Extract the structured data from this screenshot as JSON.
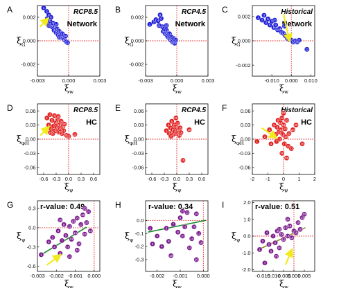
{
  "colors": {
    "blue": "#1f1fd6",
    "red": "#e02020",
    "purple": "#7b1c8e",
    "fit": "#1c8a2a",
    "fit_i": "#8a8a1c",
    "arrow": "#f2ea1d",
    "zero": "#e02020"
  },
  "chart_data": [
    {
      "id": "A",
      "type": "scatter",
      "panel_label": "A",
      "title": "RCP8.5",
      "subtitle": "Network",
      "xlim": [
        -0.003,
        0.003
      ],
      "ylim": [
        -0.003,
        0.003
      ],
      "xticks": [
        -0.003,
        0.0,
        0.003
      ],
      "xticklabels": [
        "-0.003",
        "0.000",
        "0.003"
      ],
      "yticks": [
        -0.002,
        0.0,
        0.002
      ],
      "yticklabels": [
        "-0.002",
        "0.000",
        "0.002"
      ],
      "color": "blue",
      "arrow": {
        "from": [
          -0.00275,
          0.0012
        ],
        "to": [
          -0.00215,
          0.00175
        ]
      },
      "points": [
        [
          -0.0024,
          0.0028
        ],
        [
          -0.0021,
          0.0025
        ],
        [
          -0.00205,
          0.0019
        ],
        [
          -0.0019,
          0.0022
        ],
        [
          -0.0018,
          0.0017
        ],
        [
          -0.0017,
          0.002
        ],
        [
          -0.0016,
          0.0012
        ],
        [
          -0.0015,
          0.0015
        ],
        [
          -0.0014,
          0.0009
        ],
        [
          -0.0013,
          0.0012
        ],
        [
          -0.0012,
          0.0007
        ],
        [
          -0.0011,
          0.001
        ],
        [
          -0.001,
          0.0005
        ],
        [
          -0.0009,
          0.0008
        ],
        [
          -0.0008,
          0.0004
        ],
        [
          -0.0007,
          0.0003
        ],
        [
          -0.0006,
          0.0006
        ],
        [
          -0.0005,
          0.0002
        ],
        [
          -0.0004,
          0.0001
        ],
        [
          -0.0003,
          0.0004
        ],
        [
          -0.0002,
          -0.0001
        ],
        [
          -0.0001,
          -0.00015
        ],
        [
          -0.0019,
          0.0013
        ],
        [
          -0.0012,
          0.0014
        ],
        [
          -0.0009,
          0.0003
        ],
        [
          -0.0022,
          0.0016
        ]
      ]
    },
    {
      "id": "B",
      "type": "scatter",
      "panel_label": "B",
      "title": "RCP4.5",
      "subtitle": "Network",
      "xlim": [
        -0.003,
        0.003
      ],
      "ylim": [
        -0.003,
        0.003
      ],
      "xticks": [
        -0.003,
        0.0,
        0.003
      ],
      "xticklabels": [
        "-0.003",
        "0.000",
        "0.003"
      ],
      "yticks": [
        -0.002,
        0.0,
        0.002
      ],
      "yticklabels": [
        "-0.002",
        "0.000",
        "0.002"
      ],
      "color": "blue",
      "arrow": null,
      "points": [
        [
          -0.0026,
          0.0014
        ],
        [
          -0.0022,
          0.0016
        ],
        [
          -0.002,
          0.0018
        ],
        [
          -0.0018,
          0.0017
        ],
        [
          -0.0016,
          0.0022
        ],
        [
          -0.0015,
          0.0019
        ],
        [
          -0.0014,
          0.0012
        ],
        [
          -0.0013,
          0.0008
        ],
        [
          -0.0012,
          0.001
        ],
        [
          -0.0011,
          0.0006
        ],
        [
          -0.001,
          0.0009
        ],
        [
          -0.0009,
          0.0004
        ],
        [
          -0.0008,
          0.0003
        ],
        [
          -0.0007,
          0.0006
        ],
        [
          -0.0006,
          0.0001
        ],
        [
          -0.0005,
          0.0003
        ],
        [
          -0.0004,
          -0.0001
        ],
        [
          -0.0003,
          0.0002
        ],
        [
          -0.0002,
          -0.0002
        ],
        [
          -0.0001,
          5e-05
        ],
        [
          -0.0017,
          0.0013
        ],
        [
          -0.001,
          0.0013
        ]
      ]
    },
    {
      "id": "C",
      "type": "scatter",
      "panel_label": "C",
      "title": "Historical",
      "subtitle": "Network",
      "xlim": [
        -0.02,
        0.012
      ],
      "ylim": [
        -0.0029,
        0.0029
      ],
      "xticks": [
        -0.01,
        0.0,
        0.01
      ],
      "xticklabels": [
        "-0.010",
        "0.000",
        "0.010"
      ],
      "yticks": [
        -0.002,
        0.0,
        0.002
      ],
      "yticklabels": [
        "-0.002",
        "0.000",
        "0.002"
      ],
      "color": "blue",
      "arrow": {
        "from": [
          -0.004,
          0.0022
        ],
        "to": [
          -0.0012,
          0.0002
        ]
      },
      "points": [
        [
          -0.017,
          0.0019
        ],
        [
          -0.015,
          0.0017
        ],
        [
          -0.014,
          0.0021
        ],
        [
          -0.013,
          0.0015
        ],
        [
          -0.012,
          0.0018
        ],
        [
          -0.011,
          0.0013
        ],
        [
          -0.01,
          0.0016
        ],
        [
          -0.009,
          0.0011
        ],
        [
          -0.008,
          0.0013
        ],
        [
          -0.007,
          0.0009
        ],
        [
          -0.006,
          0.001
        ],
        [
          -0.005,
          0.0007
        ],
        [
          -0.004,
          0.0006
        ],
        [
          -0.003,
          0.0004
        ],
        [
          -0.002,
          0.0002
        ],
        [
          -0.001,
          0.0001
        ],
        [
          0.0,
          5e-05
        ],
        [
          0.001,
          -0.0001
        ],
        [
          0.002,
          0.0
        ],
        [
          0.003,
          -0.0001
        ],
        [
          0.004,
          5e-05
        ],
        [
          0.008,
          -0.0007
        ],
        [
          -0.0085,
          0.0017
        ],
        [
          -0.0035,
          0.0012
        ]
      ]
    },
    {
      "id": "D",
      "type": "scatter",
      "panel_label": "D",
      "title": "RCP8.5",
      "subtitle": "HC",
      "xlim": [
        -0.75,
        0.75
      ],
      "ylim": [
        -0.075,
        0.075
      ],
      "xticks": [
        -0.6,
        -0.3,
        0.0,
        0.3,
        0.6
      ],
      "xticklabels": [
        "-0.6",
        "-0.3",
        "0.0",
        "0.3",
        "0.6"
      ],
      "yticks": [
        -0.06,
        -0.03,
        0.0,
        0.03,
        0.06
      ],
      "yticklabels": [
        "-0.06",
        "-0.03",
        "0.00",
        "0.03",
        "0.06"
      ],
      "color": "red",
      "arrow": {
        "from": [
          -0.68,
          0.008
        ],
        "to": [
          -0.52,
          0.022
        ]
      },
      "points": [
        [
          -0.52,
          0.045
        ],
        [
          -0.48,
          0.03
        ],
        [
          -0.45,
          0.052
        ],
        [
          -0.42,
          0.022
        ],
        [
          -0.4,
          0.04
        ],
        [
          -0.38,
          0.012
        ],
        [
          -0.36,
          0.028
        ],
        [
          -0.34,
          0.05
        ],
        [
          -0.32,
          0.018
        ],
        [
          -0.3,
          0.035
        ],
        [
          -0.28,
          0.025
        ],
        [
          -0.26,
          0.042
        ],
        [
          -0.24,
          0.015
        ],
        [
          -0.22,
          0.03
        ],
        [
          -0.2,
          0.022
        ],
        [
          -0.18,
          0.038
        ],
        [
          -0.16,
          0.012
        ],
        [
          -0.14,
          0.026
        ],
        [
          -0.12,
          0.018
        ],
        [
          -0.1,
          0.032
        ],
        [
          -0.05,
          0.008
        ],
        [
          0.0,
          0.006
        ],
        [
          0.15,
          0.01
        ],
        [
          -0.44,
          0.014
        ],
        [
          -0.25,
          0.048
        ]
      ]
    },
    {
      "id": "E",
      "type": "scatter",
      "panel_label": "E",
      "title": "RCP4.5",
      "subtitle": "HC",
      "xlim": [
        -0.75,
        0.75
      ],
      "ylim": [
        -0.075,
        0.075
      ],
      "xticks": [
        -0.6,
        -0.3,
        0.0,
        0.3,
        0.6
      ],
      "xticklabels": [
        "-0.6",
        "-0.3",
        "0.0",
        "0.3",
        "0.6"
      ],
      "yticks": [
        -0.06,
        -0.03,
        0.0,
        0.03,
        0.06
      ],
      "yticklabels": [
        "-0.06",
        "-0.03",
        "0.00",
        "0.03",
        "0.06"
      ],
      "color": "red",
      "arrow": null,
      "points": [
        [
          -0.25,
          0.018
        ],
        [
          -0.2,
          0.03
        ],
        [
          -0.18,
          0.012
        ],
        [
          -0.15,
          0.024
        ],
        [
          -0.12,
          0.038
        ],
        [
          -0.1,
          0.02
        ],
        [
          -0.08,
          0.01
        ],
        [
          -0.06,
          0.03
        ],
        [
          -0.04,
          0.016
        ],
        [
          -0.02,
          0.026
        ],
        [
          0.0,
          0.012
        ],
        [
          0.02,
          0.034
        ],
        [
          0.04,
          0.02
        ],
        [
          0.06,
          0.008
        ],
        [
          0.08,
          0.024
        ],
        [
          0.1,
          0.014
        ],
        [
          -0.14,
          0.006
        ],
        [
          0.3,
          0.02
        ],
        [
          0.15,
          -0.045
        ],
        [
          -0.02,
          0.045
        ]
      ]
    },
    {
      "id": "F",
      "type": "scatter",
      "panel_label": "F",
      "title": "Historical",
      "subtitle": "HC",
      "xlim": [
        -2.0,
        2.0
      ],
      "ylim": [
        -0.075,
        0.075
      ],
      "xticks": [
        -2,
        -1,
        0,
        1,
        2
      ],
      "xticklabels": [
        "-2",
        "-1",
        "0",
        "1",
        "2"
      ],
      "yticks": [
        -0.06,
        -0.03,
        0.0,
        0.03,
        0.06
      ],
      "yticklabels": [
        "-0.06",
        "-0.03",
        "0.00",
        "0.03",
        "0.06"
      ],
      "color": "red",
      "arrow": {
        "from": [
          -1.4,
          0.024
        ],
        "to": [
          -0.6,
          0.006
        ]
      },
      "points": [
        [
          -1.7,
          -0.005
        ],
        [
          -1.2,
          0.005
        ],
        [
          -0.9,
          0.02
        ],
        [
          -0.8,
          -0.01
        ],
        [
          -0.6,
          0.03
        ],
        [
          -0.5,
          0.01
        ],
        [
          -0.45,
          -0.005
        ],
        [
          -0.4,
          0.025
        ],
        [
          -0.35,
          0.04
        ],
        [
          -0.3,
          0.015
        ],
        [
          -0.25,
          0.0
        ],
        [
          -0.2,
          0.035
        ],
        [
          -0.15,
          0.02
        ],
        [
          -0.1,
          0.045
        ],
        [
          -0.05,
          0.01
        ],
        [
          0.0,
          0.03
        ],
        [
          0.05,
          -0.01
        ],
        [
          0.1,
          0.022
        ],
        [
          0.15,
          0.005
        ],
        [
          0.2,
          0.04
        ],
        [
          0.3,
          -0.015
        ],
        [
          0.35,
          0.012
        ],
        [
          0.5,
          -0.02
        ],
        [
          0.6,
          0.02
        ],
        [
          1.2,
          -0.01
        ],
        [
          -0.1,
          -0.03
        ],
        [
          0.0,
          0.055
        ],
        [
          0.2,
          -0.04
        ],
        [
          0.8,
          0.03
        ]
      ]
    },
    {
      "id": "G",
      "type": "scatter",
      "panel_label": "G",
      "annotation": "r-value: 0.49",
      "xlim": [
        -0.003,
        0.0003
      ],
      "ylim": [
        -0.68,
        0.42
      ],
      "xticks": [
        -0.003,
        -0.002,
        -0.001,
        0.0
      ],
      "xticklabels": [
        "-0.003",
        "-0.002",
        "-0.001",
        "0.000"
      ],
      "yticks": [
        -0.6,
        -0.3,
        0.0,
        0.3
      ],
      "yticklabels": [
        "-0.6",
        "-0.3",
        "0.0",
        "0.3"
      ],
      "color": "purple",
      "fit": {
        "x": [
          -0.0028,
          -0.0004
        ],
        "y": [
          -0.42,
          0.01
        ]
      },
      "arrow": {
        "from": [
          -0.0025,
          -0.58
        ],
        "to": [
          -0.0019,
          -0.45
        ]
      },
      "points": [
        [
          -0.0028,
          -0.42
        ],
        [
          -0.0024,
          -0.22
        ],
        [
          -0.0022,
          -0.15
        ],
        [
          -0.0021,
          -0.3
        ],
        [
          -0.0019,
          -0.05
        ],
        [
          -0.0018,
          -0.4
        ],
        [
          -0.0017,
          -0.2
        ],
        [
          -0.0016,
          0.05
        ],
        [
          -0.0015,
          -0.12
        ],
        [
          -0.0014,
          -0.3
        ],
        [
          -0.0013,
          0.02
        ],
        [
          -0.0012,
          -0.18
        ],
        [
          -0.0011,
          0.1
        ],
        [
          -0.001,
          -0.08
        ],
        [
          -0.0009,
          0.15
        ],
        [
          -0.0008,
          -0.25
        ],
        [
          -0.0007,
          0.05
        ],
        [
          -0.0006,
          0.2
        ],
        [
          -0.0005,
          -0.1
        ],
        [
          -0.0004,
          0.08
        ],
        [
          -0.0003,
          0.25
        ],
        [
          -0.0002,
          -0.05
        ],
        [
          -0.0013,
          -0.45
        ],
        [
          -0.0009,
          -0.35
        ],
        [
          -0.0005,
          0.3
        ],
        [
          -0.0018,
          0.12
        ]
      ]
    },
    {
      "id": "H",
      "type": "scatter",
      "panel_label": "H",
      "annotation": "r-value: 0.34",
      "xlim": [
        -0.0025,
        0.0002
      ],
      "ylim": [
        -0.39,
        0.15
      ],
      "xticks": [
        -0.002,
        -0.001,
        0.0
      ],
      "xticklabels": [
        "-0.002",
        "-0.001",
        "0.000"
      ],
      "yticks": [
        -0.3,
        -0.2,
        -0.1,
        0.0
      ],
      "yticklabels": [
        "-0.3",
        "-0.2",
        "-0.1",
        "0.0"
      ],
      "color": "purple",
      "fit": {
        "x": [
          -0.0024,
          0.0001
        ],
        "y": [
          -0.09,
          0.0
        ]
      },
      "arrow": null,
      "points": [
        [
          -0.0023,
          -0.06
        ],
        [
          -0.0022,
          -0.18
        ],
        [
          -0.002,
          -0.12
        ],
        [
          -0.0018,
          -0.2
        ],
        [
          -0.0016,
          -0.06
        ],
        [
          -0.0015,
          -0.16
        ],
        [
          -0.0013,
          -0.03
        ],
        [
          -0.0011,
          -0.09
        ],
        [
          -0.001,
          0.02
        ],
        [
          -0.0009,
          -0.12
        ],
        [
          -0.0008,
          -0.05
        ],
        [
          -0.0007,
          0.06
        ],
        [
          -0.0006,
          -0.21
        ],
        [
          -0.0005,
          -0.14
        ],
        [
          -0.0004,
          -0.05
        ],
        [
          -0.0003,
          0.05
        ],
        [
          -0.0002,
          -0.1
        ],
        [
          -0.0001,
          -0.17
        ],
        [
          -0.0014,
          -0.27
        ],
        [
          -0.0003,
          -0.3
        ],
        [
          -0.0009,
          0.07
        ]
      ]
    },
    {
      "id": "I",
      "type": "scatter",
      "panel_label": "I",
      "annotation": "r-value: 0.51",
      "xlim": [
        -0.02,
        0.01
      ],
      "ylim": [
        -2.1,
        2.1
      ],
      "xticks": [
        -0.015,
        -0.01,
        -0.005,
        0.0,
        0.005
      ],
      "xticklabels": [
        "-0.015",
        "-0.010",
        "-0.005",
        "0.000",
        "0.005"
      ],
      "yticks": [
        -2,
        -1,
        0,
        1,
        2
      ],
      "yticklabels": [
        "-2.0",
        "-1.0",
        "0.0",
        "1.0",
        "2.0"
      ],
      "color": "purple",
      "fit": {
        "x": [
          -0.017,
          0.0055
        ],
        "y": [
          -0.8,
          0.5
        ]
      },
      "arrow": {
        "from": [
          -0.004,
          -1.7
        ],
        "to": [
          -0.0015,
          -0.95
        ]
      },
      "points": [
        [
          -0.0165,
          -0.8
        ],
        [
          -0.015,
          -0.3
        ],
        [
          -0.014,
          -1.6
        ],
        [
          -0.013,
          0.2
        ],
        [
          -0.012,
          -0.5
        ],
        [
          -0.011,
          -0.9
        ],
        [
          -0.01,
          0.0
        ],
        [
          -0.009,
          -0.4
        ],
        [
          -0.008,
          0.3
        ],
        [
          -0.007,
          -0.7
        ],
        [
          -0.006,
          0.1
        ],
        [
          -0.005,
          -0.2
        ],
        [
          -0.004,
          0.5
        ],
        [
          -0.003,
          0.0
        ],
        [
          -0.002,
          0.6
        ],
        [
          -0.001,
          -0.1
        ],
        [
          0.0,
          0.3
        ],
        [
          0.001,
          0.2
        ],
        [
          0.002,
          0.8
        ],
        [
          0.003,
          0.4
        ],
        [
          0.004,
          1.1
        ],
        [
          0.005,
          1.3
        ],
        [
          -0.007,
          0.4
        ],
        [
          -0.003,
          1.0
        ],
        [
          -0.0085,
          -1.2
        ]
      ]
    }
  ]
}
